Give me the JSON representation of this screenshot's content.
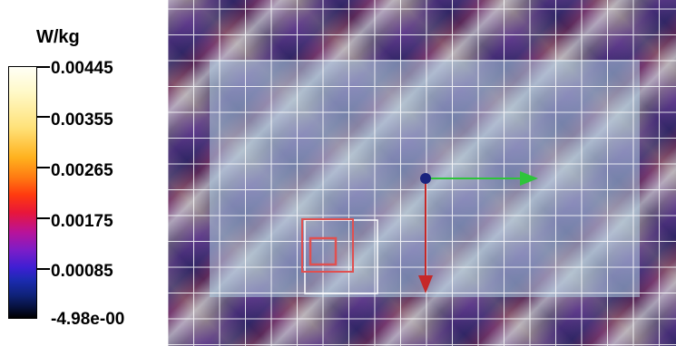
{
  "legend": {
    "unit": "W/kg",
    "ticks": [
      {
        "label": "0.00445"
      },
      {
        "label": "0.00355"
      },
      {
        "label": "0.00265"
      },
      {
        "label": "0.00175"
      },
      {
        "label": "0.00085"
      },
      {
        "label": "-4.98e-00"
      }
    ]
  },
  "colors": {
    "grid_line": "#ffffff",
    "x_axis_arrow": "#2ec43a",
    "y_axis_arrow": "#c62828",
    "origin_marker": "#1a237e",
    "highlight_outer": "#e05050",
    "highlight_inner": "#e05050",
    "selection_box": "#ffffff"
  },
  "icons": {
    "origin": "origin-marker-icon",
    "x_axis": "x-axis-arrow-icon",
    "y_axis": "y-axis-arrow-icon"
  }
}
